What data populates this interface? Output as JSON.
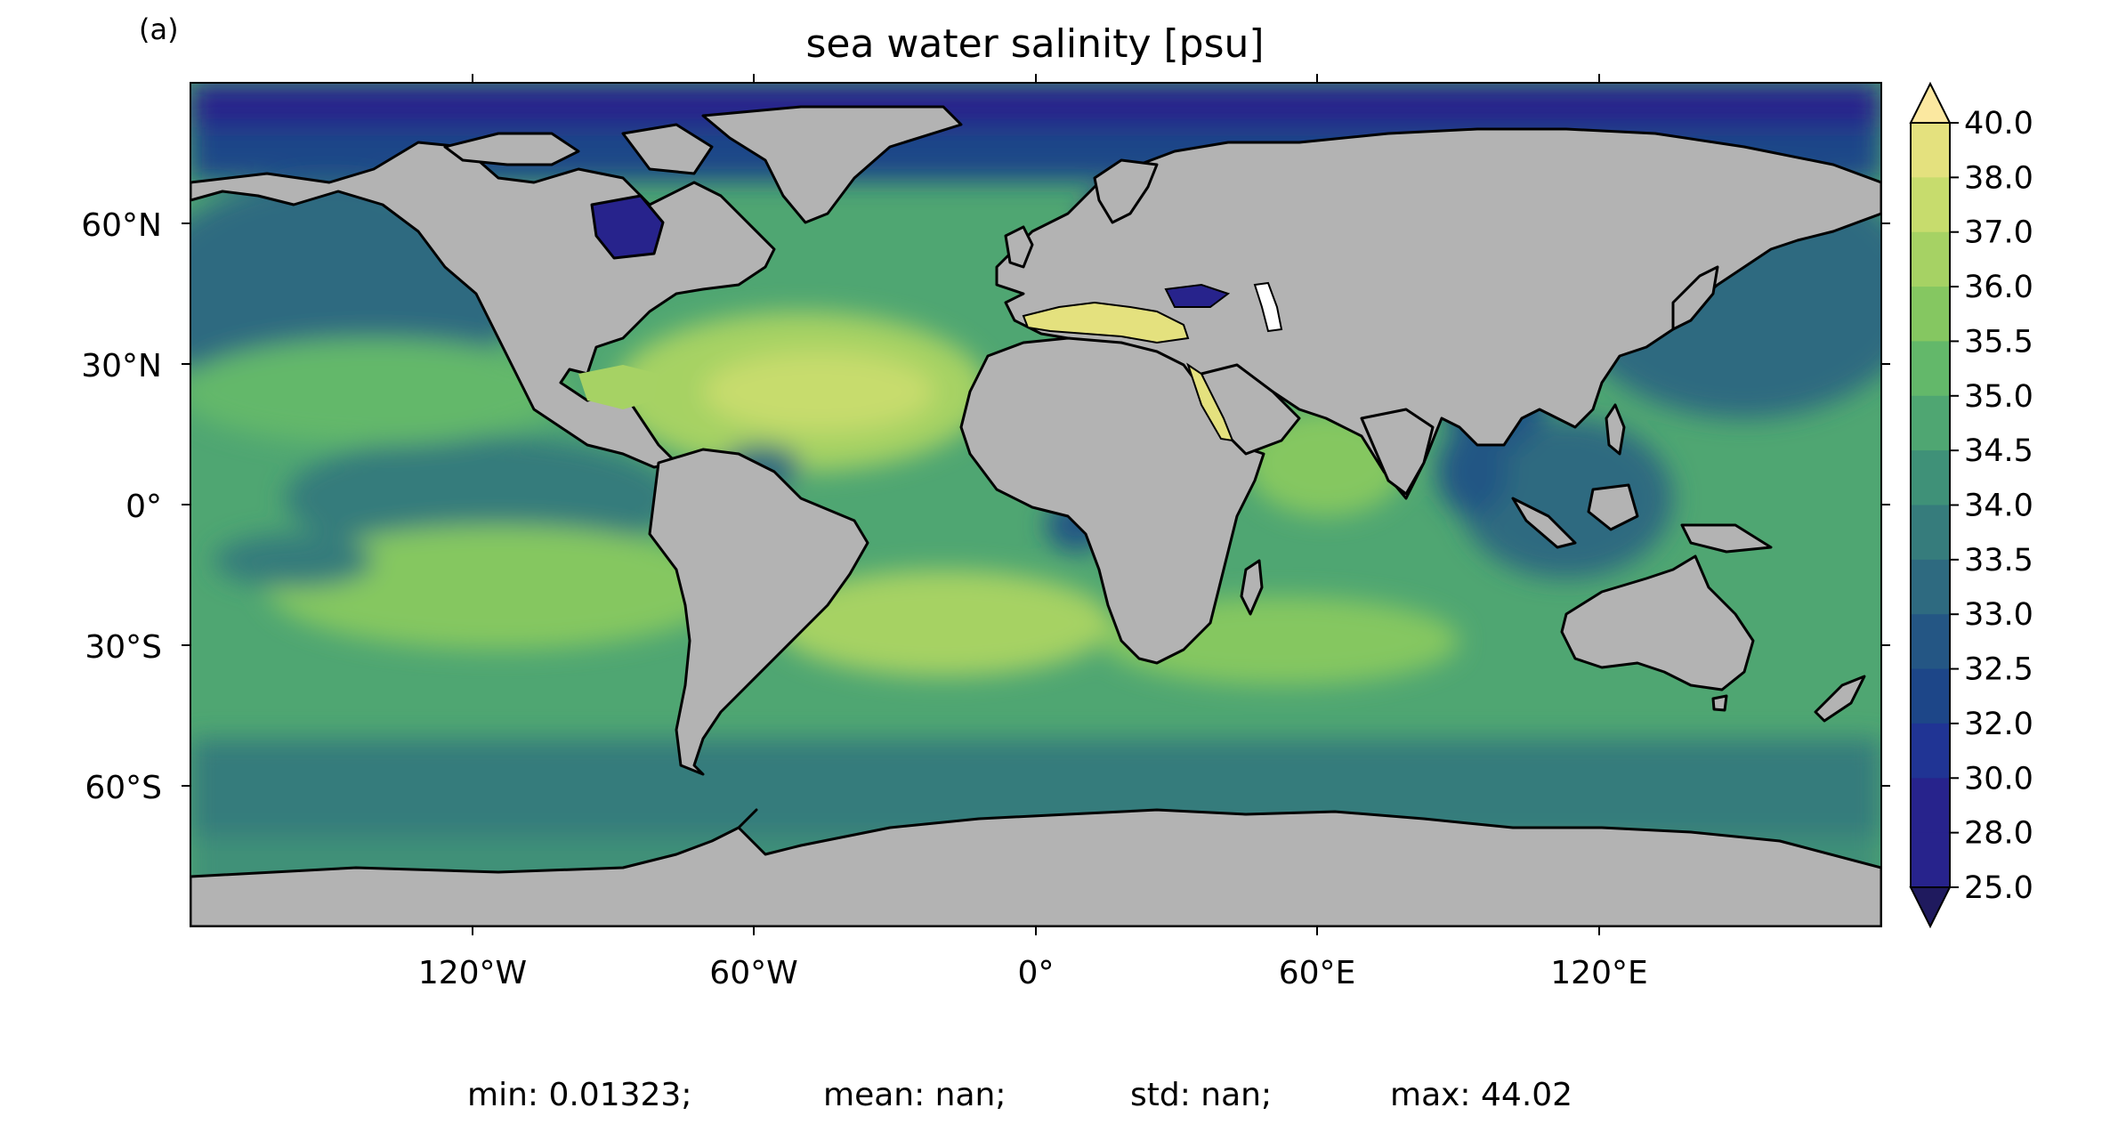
{
  "panel_label": "(a)",
  "title": "sea water salinity [psu]",
  "colorbar": {
    "levels": [
      "40.0",
      "38.0",
      "37.0",
      "36.0",
      "35.5",
      "35.0",
      "34.5",
      "34.0",
      "33.5",
      "33.0",
      "32.5",
      "32.0",
      "30.0",
      "28.0",
      "25.0"
    ],
    "colors": [
      "#fbe8a0",
      "#e4e17e",
      "#c7dc6d",
      "#a6d264",
      "#85c761",
      "#63b86a",
      "#4fa672",
      "#3f9178",
      "#367c7c",
      "#2e6a80",
      "#245684",
      "#1d4688",
      "#203494",
      "#27238c",
      "#1f1a5e"
    ],
    "extend": "both"
  },
  "axes": {
    "lat_ticks": [
      "60°N",
      "30°N",
      "0°",
      "30°S",
      "60°S"
    ],
    "lon_ticks": [
      "120°W",
      "60°W",
      "0°",
      "60°E",
      "120°E"
    ]
  },
  "land_color": "#b3b3b3",
  "stats": {
    "min": "min: 0.01323;",
    "mean": "mean: nan;",
    "std": "std: nan;",
    "max": "max: 44.02"
  }
}
